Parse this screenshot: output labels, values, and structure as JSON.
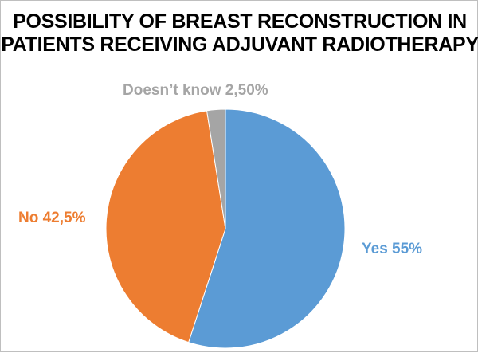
{
  "chart_data": {
    "type": "pie",
    "title_lines": [
      "POSSIBILITY OF BREAST RECONSTRUCTION IN",
      "PATIENTS RECEIVING ADJUVANT RADIOTHERAPY"
    ],
    "slices": [
      {
        "name": "Yes",
        "value": 55,
        "label": "Yes 55%",
        "color": "#5b9bd5"
      },
      {
        "name": "No",
        "value": 42.5,
        "label": "No 42,5%",
        "color": "#ed7d31"
      },
      {
        "name": "Doesn't know",
        "value": 2.5,
        "label": "Doesn’t know 2,50%",
        "color": "#a5a5a5"
      }
    ],
    "start_angle": "12 o'clock",
    "direction": "clockwise",
    "legend": "none (labels next to slices)"
  }
}
